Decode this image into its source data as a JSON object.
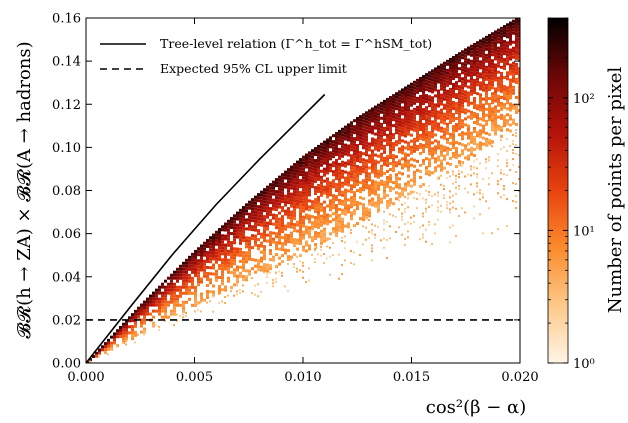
{
  "chart_data": {
    "type": "scatter",
    "xlabel": "cos²(β − α)",
    "ylabel": "𝓑𝓡(h → ZA) × 𝓑𝓡(A → hadrons)",
    "xlim": [
      0.0,
      0.02
    ],
    "ylim": [
      0.0,
      0.16
    ],
    "xticks": [
      "0.000",
      "0.005",
      "0.010",
      "0.015",
      "0.020"
    ],
    "yticks": [
      "0.00",
      "0.02",
      "0.04",
      "0.06",
      "0.08",
      "0.10",
      "0.12",
      "0.14",
      "0.16"
    ],
    "x_tick_values": [
      0.0,
      0.005,
      0.01,
      0.015,
      0.02
    ],
    "y_tick_values": [
      0.0,
      0.02,
      0.04,
      0.06,
      0.08,
      0.1,
      0.12,
      0.14,
      0.16
    ],
    "legend_position": "top-left",
    "series": [
      {
        "name": "Tree-level relation (Γ^h_tot = Γ^hSM_tot)",
        "style": "solid",
        "color": "#000000",
        "x": [
          0.0,
          0.002,
          0.004,
          0.006,
          0.008,
          0.01,
          0.011
        ],
        "y": [
          0.0,
          0.0255,
          0.0505,
          0.0735,
          0.0945,
          0.1145,
          0.1245
        ]
      },
      {
        "name": "Expected 95% CL upper limit",
        "style": "dashed",
        "color": "#000000",
        "x": [
          0.0,
          0.02
        ],
        "y": [
          0.02,
          0.02
        ]
      }
    ],
    "density_band": {
      "x": [
        0.0,
        0.0025,
        0.005,
        0.0075,
        0.01,
        0.0125,
        0.015,
        0.0175,
        0.02
      ],
      "upper": [
        0.0,
        0.027,
        0.052,
        0.075,
        0.096,
        0.114,
        0.13,
        0.146,
        0.161
      ],
      "lower": [
        0.0,
        0.014,
        0.027,
        0.039,
        0.051,
        0.065,
        0.079,
        0.094,
        0.111
      ],
      "sparse_lower": [
        0.0,
        0.01,
        0.02,
        0.028,
        0.034,
        0.04,
        0.048,
        0.055,
        0.062
      ]
    },
    "colorbar": {
      "label": "Number of points per pixel",
      "scale": "log",
      "range": [
        1,
        400
      ],
      "tick_labels": [
        "10⁰",
        "10¹",
        "10²"
      ],
      "tick_values": [
        1,
        10,
        100
      ],
      "colors": [
        "#fff5e6",
        "#fdc98a",
        "#fb8c2c",
        "#e8430f",
        "#b3130a",
        "#6b0606",
        "#000000"
      ]
    }
  }
}
